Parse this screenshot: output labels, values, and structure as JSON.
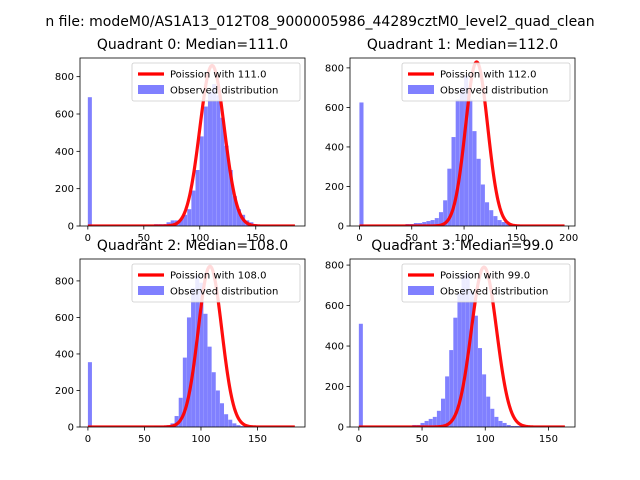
{
  "figure": {
    "title": "n file: modeM0/AS1A13_012T08_9000005986_44289cztM0_level2_quad_clean"
  },
  "chart_data": [
    {
      "type": "bar",
      "title": "Quadrant 0: Median=111.0",
      "xlim": [
        -7,
        194
      ],
      "ylim": [
        0,
        900
      ],
      "xticks": [
        0,
        50,
        100,
        150
      ],
      "yticks": [
        0,
        200,
        400,
        600,
        800
      ],
      "bin_start": 0,
      "bin_width": 3.7,
      "values": [
        690,
        0,
        0,
        0,
        0,
        0,
        0,
        0,
        0,
        0,
        0,
        0,
        0,
        0,
        0,
        0,
        10,
        10,
        10,
        20,
        30,
        30,
        35,
        60,
        90,
        190,
        300,
        480,
        640,
        720,
        760,
        700,
        580,
        430,
        300,
        160,
        90,
        60,
        30,
        20,
        10,
        5,
        5,
        5,
        0,
        0,
        0,
        0,
        0,
        0
      ],
      "poisson_mean": 111.0,
      "poisson_peak": 860,
      "poisson_sigma": 11.0,
      "curve_xmax": 185,
      "legend": [
        "Poission with 111.0",
        "Observed distribution"
      ],
      "legend_position": "upper-right",
      "curve_color": "#ff0000",
      "bar_color": "#8080ff"
    },
    {
      "type": "bar",
      "title": "Quadrant 1: Median=112.0",
      "xlim": [
        -9,
        206
      ],
      "ylim": [
        0,
        850
      ],
      "xticks": [
        0,
        50,
        100,
        150,
        200
      ],
      "yticks": [
        0,
        200,
        400,
        600,
        800
      ],
      "bin_start": 0,
      "bin_width": 4.0,
      "values": [
        625,
        0,
        0,
        0,
        0,
        0,
        0,
        0,
        0,
        0,
        0,
        10,
        10,
        15,
        15,
        20,
        25,
        30,
        40,
        70,
        130,
        290,
        450,
        640,
        700,
        760,
        640,
        480,
        340,
        210,
        120,
        80,
        50,
        30,
        20,
        10,
        5,
        5,
        5,
        0,
        0,
        0,
        0,
        0,
        0,
        0,
        0,
        0,
        0,
        0
      ],
      "poisson_mean": 112.0,
      "poisson_peak": 830,
      "poisson_sigma": 10.6,
      "curve_xmax": 196,
      "legend": [
        "Poission with 112.0",
        "Observed distribution"
      ],
      "legend_position": "upper-right",
      "curve_color": "#ff0000",
      "bar_color": "#8080ff"
    },
    {
      "type": "bar",
      "title": "Quadrant 2: Median=108.0",
      "xlim": [
        -7,
        192
      ],
      "ylim": [
        0,
        920
      ],
      "xticks": [
        0,
        50,
        100,
        150
      ],
      "yticks": [
        0,
        200,
        400,
        600,
        800
      ],
      "bin_start": 0,
      "bin_width": 3.65,
      "values": [
        355,
        0,
        0,
        0,
        0,
        0,
        0,
        0,
        0,
        0,
        0,
        0,
        0,
        0,
        0,
        0,
        5,
        5,
        5,
        10,
        20,
        60,
        160,
        380,
        600,
        760,
        830,
        790,
        620,
        440,
        300,
        200,
        130,
        70,
        40,
        20,
        10,
        5,
        5,
        5,
        0,
        0,
        0,
        0,
        0,
        0,
        0,
        0,
        0,
        0
      ],
      "poisson_mean": 108.0,
      "poisson_peak": 880,
      "poisson_sigma": 10.4,
      "curve_xmax": 183,
      "legend": [
        "Poission with 108.0",
        "Observed distribution"
      ],
      "legend_position": "upper-right",
      "curve_color": "#ff0000",
      "bar_color": "#8080ff"
    },
    {
      "type": "bar",
      "title": "Quadrant 3: Median=99.0",
      "xlim": [
        -7,
        171
      ],
      "ylim": [
        0,
        830
      ],
      "xticks": [
        0,
        50,
        100,
        150
      ],
      "yticks": [
        0,
        200,
        400,
        600,
        800
      ],
      "bin_start": 0,
      "bin_width": 3.25,
      "values": [
        510,
        0,
        0,
        0,
        0,
        0,
        0,
        0,
        0,
        0,
        0,
        0,
        0,
        10,
        10,
        20,
        30,
        40,
        50,
        80,
        140,
        250,
        380,
        540,
        660,
        750,
        760,
        670,
        550,
        390,
        260,
        150,
        90,
        50,
        30,
        20,
        10,
        5,
        5,
        5,
        0,
        0,
        0,
        0,
        0,
        0,
        0,
        0,
        0,
        0
      ],
      "poisson_mean": 99.0,
      "poisson_peak": 790,
      "poisson_sigma": 10.0,
      "curve_xmax": 163,
      "legend": [
        "Poission with 99.0",
        "Observed distribution"
      ],
      "legend_position": "upper-right",
      "curve_color": "#ff0000",
      "bar_color": "#8080ff"
    }
  ]
}
